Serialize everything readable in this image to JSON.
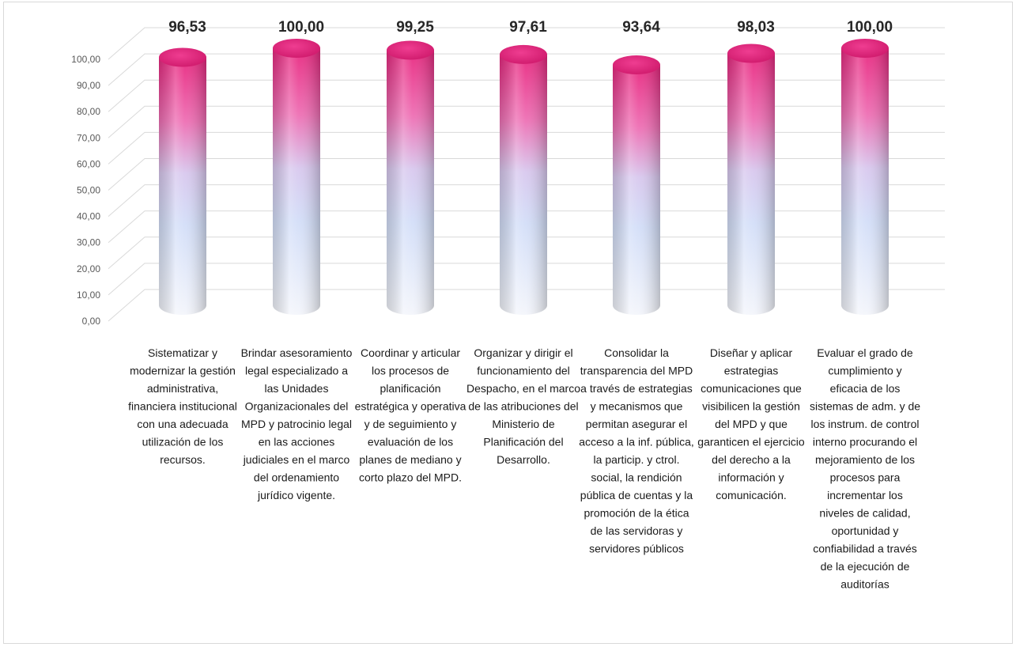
{
  "chart_data": {
    "type": "bar",
    "style": "3d-cylinder",
    "categories": [
      "Sistematizar y modernizar la gestión administrativa, financiera institucional con una adecuada utilización de los recursos.",
      "Brindar asesoramiento legal especializado a las Unidades Organizacionales del MPD y patrocinio legal en las acciones judiciales en el marco del ordenamiento jurídico vigente.",
      "Coordinar y articular los procesos de planificación estratégica y operativa y de seguimiento y evaluación de los planes de mediano y corto plazo del MPD.",
      "Organizar y dirigir el funcionamiento del Despacho, en el marco de las atribuciones del Ministerio de Planificación del Desarrollo.",
      "Consolidar la transparencia del MPD a través de estrategias y mecanismos que permitan asegurar el acceso a la inf. pública, la particip. y ctrol. social, la rendición pública de cuentas y la promoción de la ética de las servidoras y servidores públicos",
      "Diseñar y aplicar estrategias comunicaciones que visibilicen la gestión del MPD y que garanticen el ejercicio del derecho a la información y comunicación.",
      "Evaluar el grado de cumplimiento y eficacia de los sistemas de adm. y de los instrum. de control interno procurando el mejoramiento de los procesos para incrementar los niveles de calidad, oportunidad y confiabilidad a través de la ejecución de auditorías"
    ],
    "category_lines": [
      [
        "Sistematizar y",
        "modernizar la gestión",
        "administrativa,",
        "financiera institucional",
        "con una adecuada",
        "utilización de los",
        "recursos."
      ],
      [
        "Brindar asesoramiento",
        "legal especializado a",
        "las Unidades",
        "Organizacionales del",
        "MPD y patrocinio legal",
        "en las acciones",
        "judiciales en el marco",
        "del ordenamiento",
        "jurídico vigente."
      ],
      [
        "Coordinar y articular",
        "los procesos de",
        "planificación",
        "estratégica y operativa",
        "y de seguimiento y",
        "evaluación de los",
        "planes de  mediano y",
        "corto plazo del MPD."
      ],
      [
        "Organizar y dirigir el",
        "funcionamiento del",
        "Despacho, en el marco",
        "de las atribuciones del",
        "Ministerio de",
        "Planificación del",
        "Desarrollo."
      ],
      [
        "Consolidar la",
        "transparencia del MPD",
        "a través de estrategias",
        "y mecanismos que",
        "permitan asegurar el",
        "acceso a la inf. pública,",
        "la particip. y ctrol.",
        "social, la rendición",
        "pública de cuentas y la",
        "promoción de la ética",
        "de las servidoras y",
        "servidores públicos"
      ],
      [
        "Diseñar y aplicar",
        "estrategias",
        "comunicaciones que",
        "visibilicen la gestión",
        "del MPD y que",
        "garanticen el ejercicio",
        "del derecho a la",
        "información y",
        "comunicación."
      ],
      [
        "Evaluar el grado de",
        "cumplimiento y",
        "eficacia de los",
        "sistemas de adm. y de",
        "los instrum. de control",
        "interno procurando el",
        "mejoramiento de los",
        "procesos para",
        "incrementar los",
        "niveles de calidad,",
        "oportunidad y",
        "confiabilidad a través",
        "de la ejecución de",
        "auditorías"
      ]
    ],
    "values": [
      96.53,
      100.0,
      99.25,
      97.61,
      93.64,
      98.03,
      100.0
    ],
    "value_labels": [
      "96,53",
      "100,00",
      "99,25",
      "97,61",
      "93,64",
      "98,03",
      "100,00"
    ],
    "y_ticks": [
      "0,00",
      "10,00",
      "20,00",
      "30,00",
      "40,00",
      "50,00",
      "60,00",
      "70,00",
      "80,00",
      "90,00",
      "100,00"
    ],
    "ylim": [
      0,
      100
    ],
    "grid": true,
    "legend": "none",
    "colors": {
      "bar_top": "#e8277f",
      "bar_mid": "#ccd9f7",
      "bar_bottom": "#eef2fb",
      "cap": "#e2227a",
      "grid": "#d9d9d9",
      "tick_text": "#595959",
      "value_text": "#262626"
    }
  }
}
